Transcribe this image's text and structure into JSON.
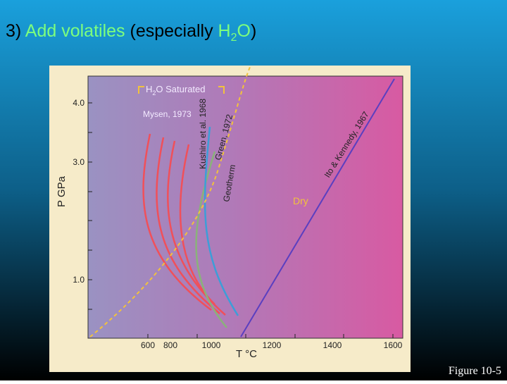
{
  "title": {
    "prefix": "3) ",
    "highlight": "Add volatiles",
    "middle": " (especially ",
    "h": "H",
    "sub": "2",
    "o": "O",
    "suffix": ")"
  },
  "figure": {
    "x_axis_label": "T °C",
    "y_axis_label": "P GPa",
    "x_ticks": [
      "600",
      "800",
      "1000",
      "1200",
      "1400",
      "1600"
    ],
    "y_ticks": [
      "1.0",
      "3.0",
      "4.0"
    ],
    "labels": {
      "saturated": {
        "h": "H",
        "sub": "2",
        "rest": "O Saturated"
      },
      "mysen": "Mysen, 1973",
      "kushiro": "Kushiro et al. 1968",
      "green": "Green, 1972",
      "geotherm": "Geotherm",
      "ito": "Ito & Kennedy, 1967",
      "dry": "Dry"
    }
  },
  "caption": "Figure 10-5"
}
